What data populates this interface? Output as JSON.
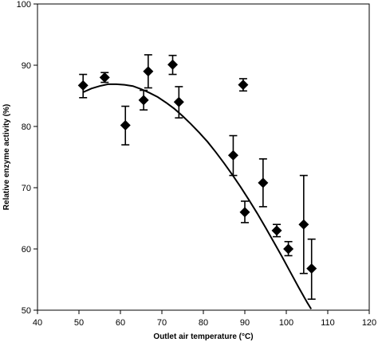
{
  "chart_data": {
    "type": "scatter",
    "title": "",
    "xlabel": "Outlet air temperature (°C)",
    "ylabel": "Relative enzyme activity (%)",
    "xlim": [
      40,
      120
    ],
    "ylim": [
      50,
      100
    ],
    "xticks": [
      "40",
      "50",
      "60",
      "70",
      "80",
      "90",
      "100",
      "110",
      "120"
    ],
    "yticks": [
      "50",
      "60",
      "70",
      "80",
      "90",
      "100"
    ],
    "grid": false,
    "marker": "diamond",
    "colors": {
      "marker": "#000000",
      "line": "#000000",
      "axis": "#000000"
    },
    "points": [
      {
        "x": 51,
        "y": 86.7,
        "err_low": 2.0,
        "err_high": 1.8
      },
      {
        "x": 56.2,
        "y": 88.0,
        "err_low": 0.8,
        "err_high": 0.8
      },
      {
        "x": 61.2,
        "y": 80.2,
        "err_low": 3.2,
        "err_high": 3.1
      },
      {
        "x": 65.6,
        "y": 84.3,
        "err_low": 1.6,
        "err_high": 1.6
      },
      {
        "x": 66.7,
        "y": 89.0,
        "err_low": 2.7,
        "err_high": 2.7
      },
      {
        "x": 72.6,
        "y": 90.1,
        "err_low": 1.6,
        "err_high": 1.5
      },
      {
        "x": 74.1,
        "y": 84.0,
        "err_low": 2.6,
        "err_high": 2.5
      },
      {
        "x": 87.2,
        "y": 75.3,
        "err_low": 3.3,
        "err_high": 3.2
      },
      {
        "x": 89.6,
        "y": 86.8,
        "err_low": 1.0,
        "err_high": 1.0
      },
      {
        "x": 90.0,
        "y": 66.0,
        "err_low": 1.7,
        "err_high": 1.8
      },
      {
        "x": 94.4,
        "y": 70.8,
        "err_low": 3.9,
        "err_high": 3.9
      },
      {
        "x": 97.7,
        "y": 63.0,
        "err_low": 1.0,
        "err_high": 1.0
      },
      {
        "x": 100.5,
        "y": 60.0,
        "err_low": 1.1,
        "err_high": 1.2
      },
      {
        "x": 104.2,
        "y": 64.0,
        "err_low": 8.0,
        "err_high": 8.0
      },
      {
        "x": 106.1,
        "y": 56.8,
        "err_low": 5.0,
        "err_high": 4.8
      }
    ],
    "trendline": {
      "type": "polynomial",
      "x": [
        51,
        53,
        55,
        57,
        59,
        61,
        63,
        65,
        67,
        69,
        71,
        73,
        75,
        77,
        79,
        81,
        83,
        85,
        87,
        89,
        91,
        93,
        95,
        97,
        99,
        101,
        103,
        105,
        106
      ],
      "y": [
        85.6,
        86.2,
        86.6,
        86.9,
        86.9,
        86.8,
        86.6,
        86.1,
        85.5,
        84.8,
        83.9,
        82.9,
        81.7,
        80.4,
        79.0,
        77.5,
        75.8,
        74.0,
        72.1,
        70.1,
        68.0,
        65.8,
        63.5,
        61.1,
        58.7,
        56.2,
        53.7,
        51.3,
        50.2
      ]
    }
  }
}
